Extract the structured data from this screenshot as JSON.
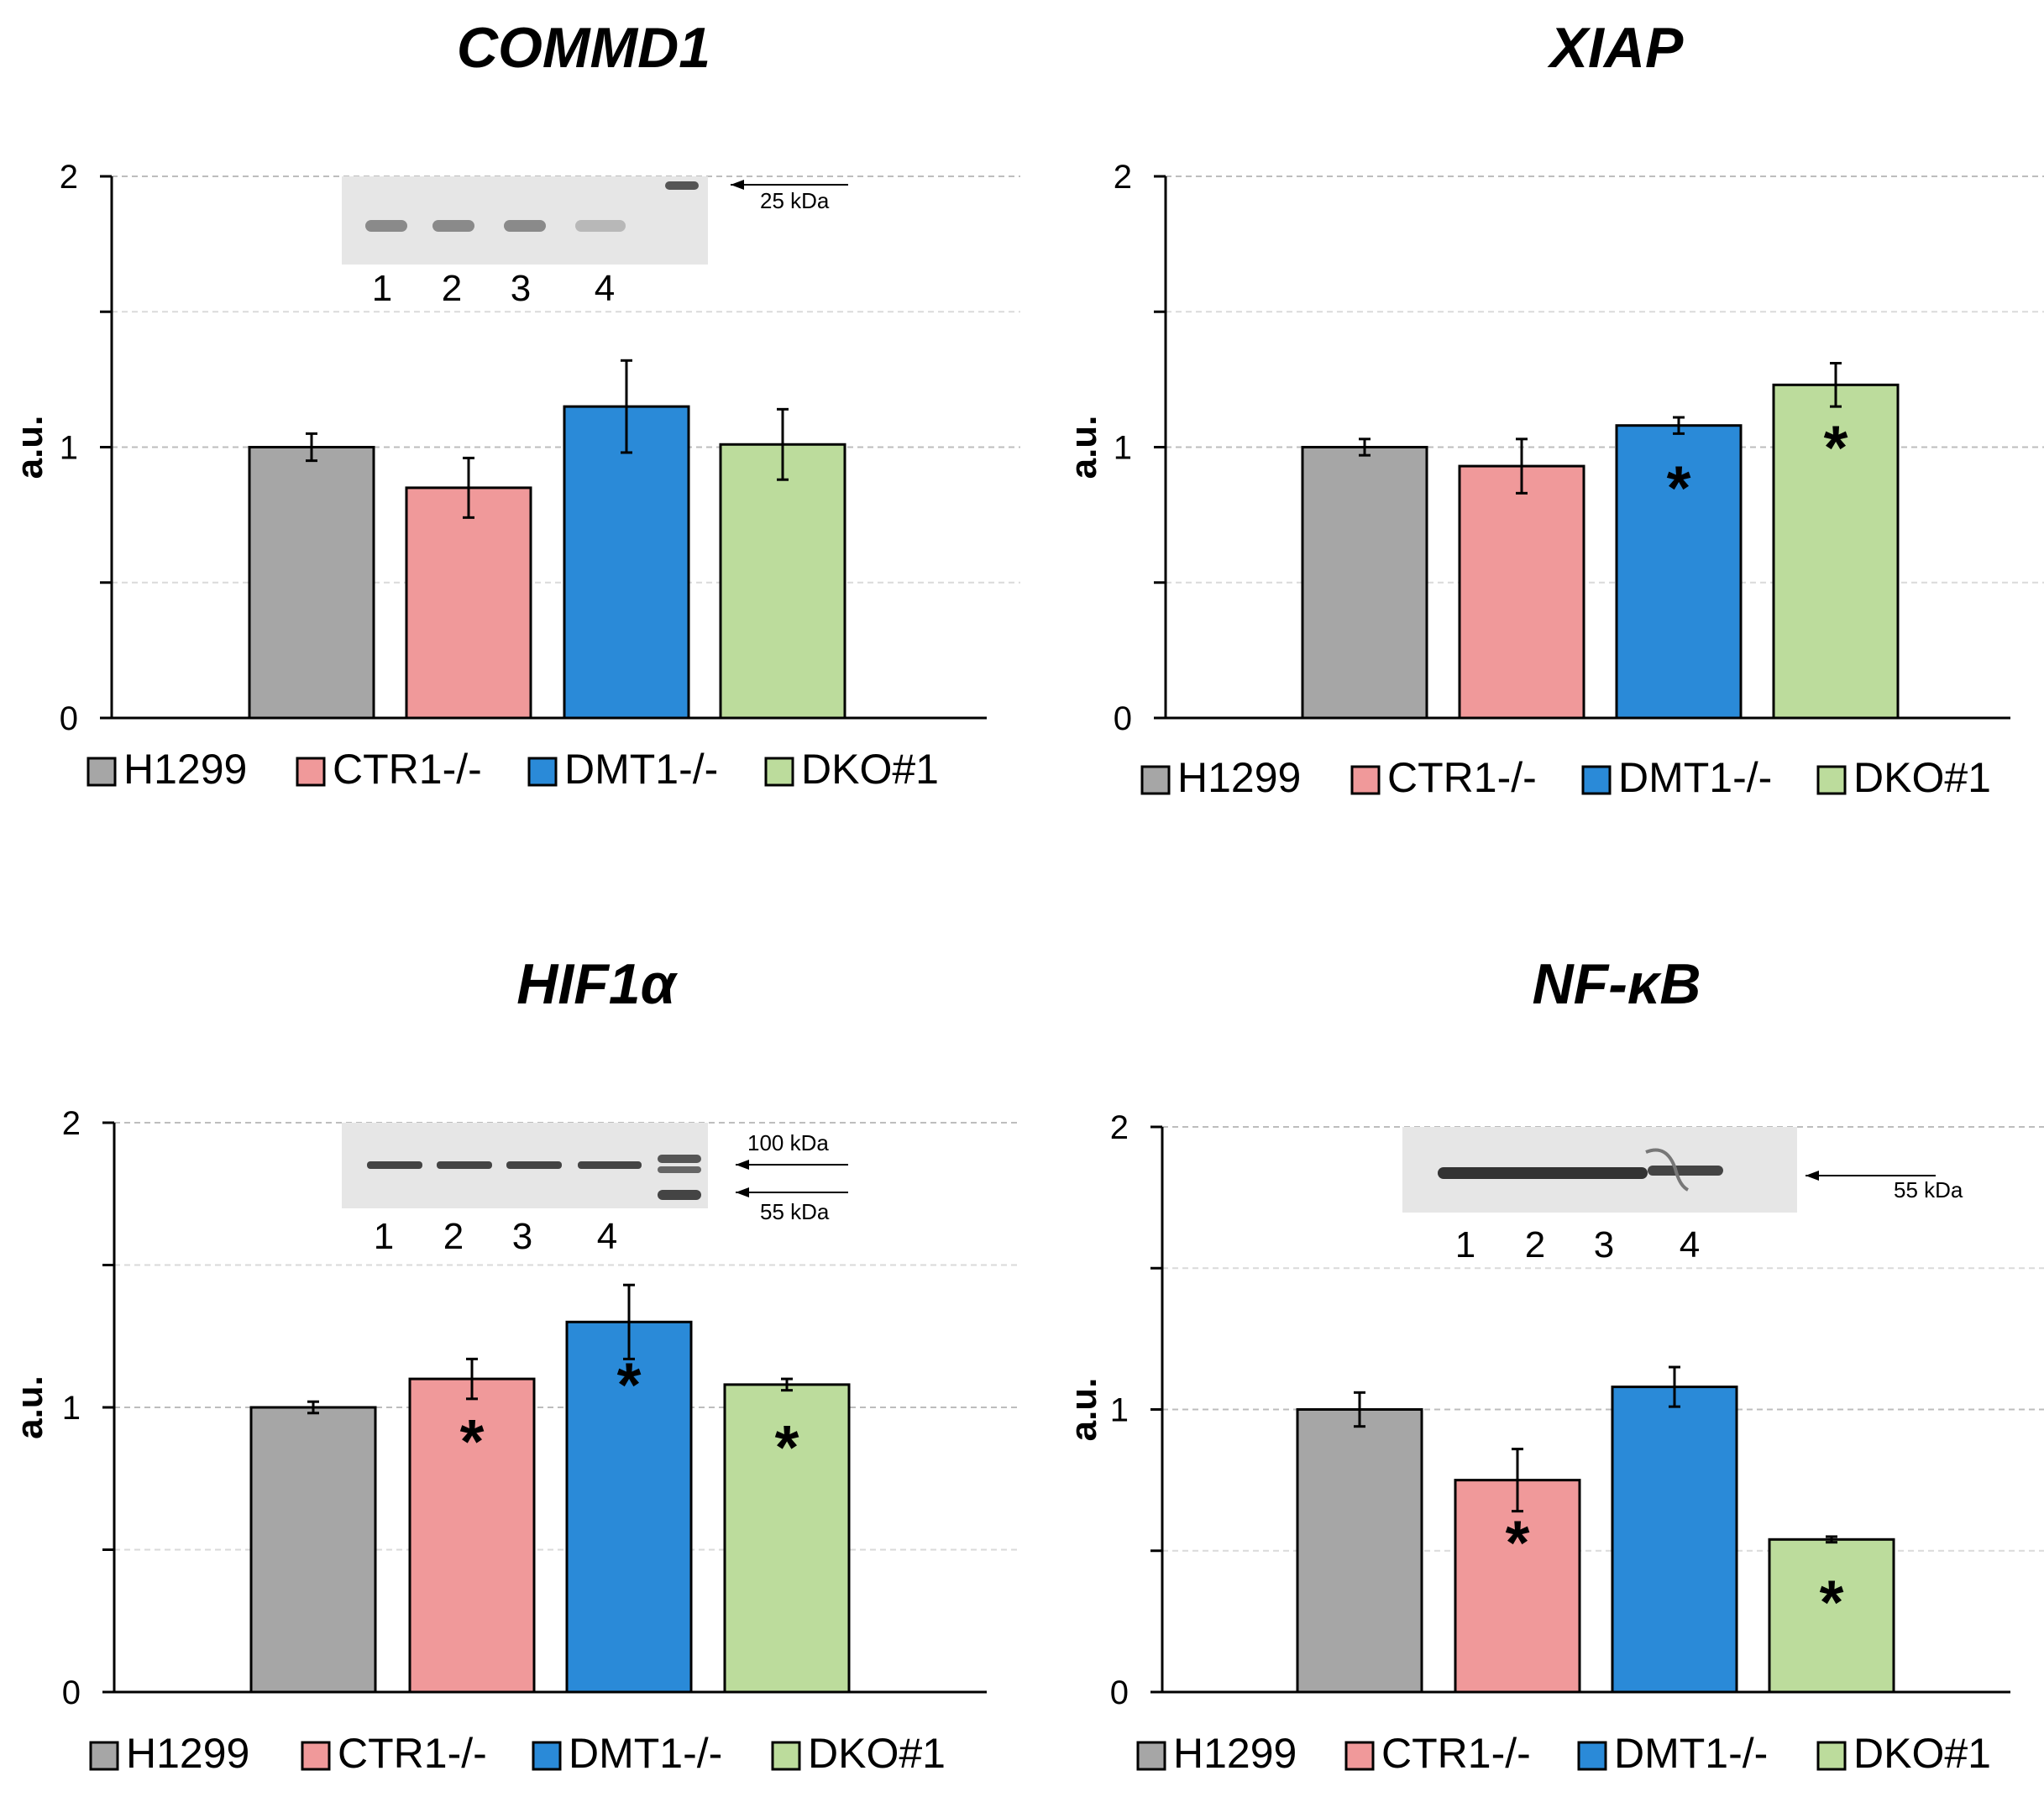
{
  "chart_data": [
    {
      "type": "bar",
      "title": "COMMD1",
      "ylabel": "a.u.",
      "ylim": [
        0,
        2
      ],
      "yticks": [
        0,
        1,
        2
      ],
      "categories": [
        "H1299",
        "CTR1-/-",
        "DMT1-/-",
        "DKO#1"
      ],
      "values": [
        1.0,
        0.85,
        1.15,
        1.01
      ],
      "errors": [
        0.05,
        0.11,
        0.17,
        0.13
      ],
      "significant": [
        false,
        false,
        false,
        false
      ],
      "legend": [
        "H1299",
        "CTR1-/-",
        "DMT1-/-",
        "DKO#1"
      ],
      "blot": {
        "lanes": [
          "1",
          "2",
          "3",
          "4"
        ],
        "markers": [
          "25 kDa"
        ]
      }
    },
    {
      "type": "bar",
      "title": "XIAP",
      "ylabel": "a.u.",
      "ylim": [
        0,
        2
      ],
      "yticks": [
        0,
        1,
        2
      ],
      "categories": [
        "H1299",
        "CTR1-/-",
        "DMT1-/-",
        "DKO#1"
      ],
      "values": [
        1.0,
        0.93,
        1.08,
        1.23
      ],
      "errors": [
        0.03,
        0.1,
        0.03,
        0.08
      ],
      "significant": [
        false,
        false,
        true,
        true
      ],
      "legend": [
        "H1299",
        "CTR1-/-",
        "DMT1-/-",
        "DKO#1"
      ]
    },
    {
      "type": "bar",
      "title": "HIF1α",
      "ylabel": "a.u.",
      "ylim": [
        0,
        2
      ],
      "yticks": [
        0,
        1,
        2
      ],
      "categories": [
        "H1299",
        "CTR1-/-",
        "DMT1-/-",
        "DKO#1"
      ],
      "values": [
        1.0,
        1.1,
        1.3,
        1.08
      ],
      "errors": [
        0.02,
        0.07,
        0.13,
        0.02
      ],
      "significant": [
        false,
        true,
        true,
        true
      ],
      "legend": [
        "H1299",
        "CTR1-/-",
        "DMT1-/-",
        "DKO#1"
      ],
      "blot": {
        "lanes": [
          "1",
          "2",
          "3",
          "4"
        ],
        "markers": [
          "100 kDa",
          "55 kDa"
        ]
      }
    },
    {
      "type": "bar",
      "title": "NF-κB",
      "ylabel": "a.u.",
      "ylim": [
        0,
        2
      ],
      "yticks": [
        0,
        1,
        2
      ],
      "categories": [
        "H1299",
        "CTR1-/-",
        "DMT1-/-",
        "DKO#1"
      ],
      "values": [
        1.0,
        0.75,
        1.08,
        0.54
      ],
      "errors": [
        0.06,
        0.11,
        0.07,
        0.01
      ],
      "significant": [
        false,
        true,
        false,
        true
      ],
      "legend": [
        "H1299",
        "CTR1-/-",
        "DMT1-/-",
        "DKO#1"
      ],
      "blot": {
        "lanes": [
          "1",
          "2",
          "3",
          "4"
        ],
        "markers": [
          "55 kDa"
        ]
      }
    }
  ],
  "colors": [
    "#a6a6a6",
    "#f0999a",
    "#2a8ad8",
    "#bcdc9c"
  ],
  "significance_mark": "*"
}
